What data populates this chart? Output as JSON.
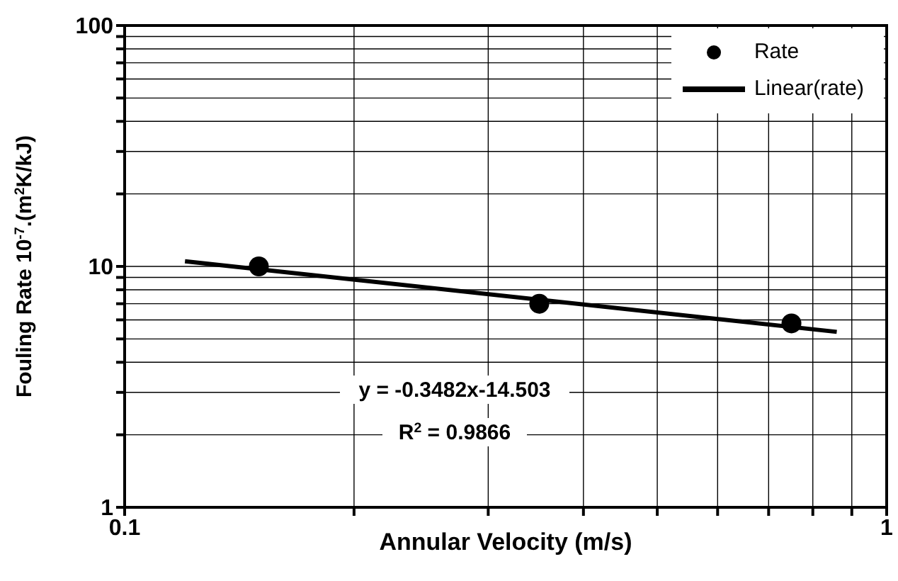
{
  "chart_data": {
    "type": "scatter",
    "xlabel": "Annular Velocity (m/s)",
    "ylabel": "Fouling Rate 10$^{-7}$.(m$^{2}$K/kJ)",
    "log": "xy",
    "grid": true,
    "legend": "top right",
    "xlim": [
      0.1,
      1
    ],
    "xticks": [
      0.1,
      {
        "value": 0.2,
        "label": null
      },
      {
        "value": 0.3,
        "label": null
      },
      {
        "value": 0.4,
        "label": null
      },
      {
        "value": 0.5,
        "label": null
      },
      {
        "value": 0.6,
        "label": null
      },
      {
        "value": 0.7,
        "label": null
      },
      {
        "value": 0.8,
        "label": null
      },
      {
        "value": 0.9,
        "label": null
      },
      1
    ],
    "ylim": [
      1,
      100
    ],
    "yticks": [
      1,
      {
        "value": 2,
        "label": null
      },
      {
        "value": 3,
        "label": null
      },
      {
        "value": 4,
        "label": null
      },
      {
        "value": 5,
        "label": null
      },
      {
        "value": 6,
        "label": null
      },
      {
        "value": 7,
        "label": null
      },
      {
        "value": 8,
        "label": null
      },
      {
        "value": 9,
        "label": null
      },
      10,
      {
        "value": 20,
        "label": null
      },
      {
        "value": 30,
        "label": null
      },
      {
        "value": 40,
        "label": null
      },
      {
        "value": 50,
        "label": null
      },
      {
        "value": 60,
        "label": null
      },
      {
        "value": 70,
        "label": null
      },
      {
        "value": 80,
        "label": null
      },
      {
        "value": 90,
        "label": null
      },
      100
    ],
    "series": [
      {
        "name": "Rate",
        "type": "scatter",
        "color": "#000000",
        "marker": "circle",
        "x": [
          0.15,
          0.35,
          0.75
        ],
        "values": [
          10,
          7.0,
          5.8
        ]
      },
      {
        "name": "Linear(rate)",
        "type": "line",
        "color": "#000000",
        "marker": "none",
        "x": [
          0.12,
          0.86
        ],
        "values": [
          10.5,
          5.35
        ]
      }
    ],
    "annotations": [
      "y = -0.3482x-14.503",
      "R$^{2}$ = 0.9866"
    ]
  }
}
